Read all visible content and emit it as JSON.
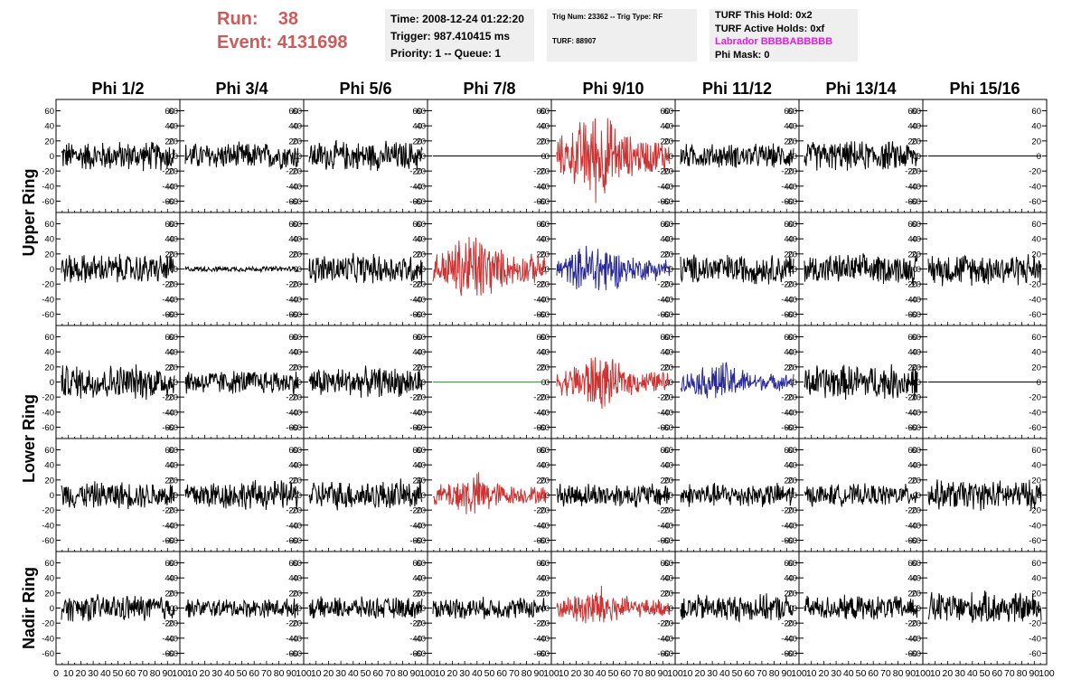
{
  "header": {
    "run_label": "Run:",
    "run_value": "38",
    "event_label": "Event:",
    "event_value": "4131698",
    "time": "Time: 2008-12-24 01:22:20",
    "trigger": "Trigger: 987.410415 ms",
    "priority": "Priority: 1 -- Queue: 1",
    "trig_num": "Trig Num: 23362 -- Trig Type: RF",
    "turf": "TURF: 88907",
    "turf_hold": "TURF This Hold: 0x2",
    "turf_active": "TURF Active Holds: 0xf",
    "labrador": "Labrador BBBBABBBBB",
    "phi_mask": "Phi Mask: 0"
  },
  "colors": {
    "black": "#000000",
    "red": "#cc3333",
    "blue": "#2a2a96",
    "green": "#2e9e2e",
    "header_red": "#cc5b5b",
    "magenta": "#e01ee0"
  },
  "chart_data": {
    "type": "line",
    "columns": [
      "Phi 1/2",
      "Phi 3/4",
      "Phi 5/6",
      "Phi 7/8",
      "Phi 9/10",
      "Phi 11/12",
      "Phi 13/14",
      "Phi 15/16"
    ],
    "rows": [
      "Upper Ring",
      "Upper Ring",
      "Lower Ring",
      "Lower Ring",
      "Nadir Ring"
    ],
    "ring_labels": [
      "Upper Ring",
      "Lower Ring",
      "Nadir Ring"
    ],
    "xlim": [
      0,
      100
    ],
    "ylim": [
      -75,
      75
    ],
    "yticks": [
      -60,
      -40,
      -20,
      0,
      20,
      40,
      60
    ],
    "xticks": [
      0,
      10,
      20,
      30,
      40,
      50,
      60,
      70,
      80,
      90,
      100
    ],
    "panels": [
      [
        "black:22",
        "black:20",
        "black:22",
        "black:0",
        "red:48",
        "black:18",
        "black:22",
        "black:0"
      ],
      [
        "black:22",
        "black:4",
        "black:22",
        "red:40",
        "blue:30",
        "black:22",
        "black:22",
        "black:24"
      ],
      [
        "black:26",
        "black:18",
        "black:22",
        "green:0",
        "red:30",
        "blue:22",
        "black:26",
        "black:0"
      ],
      [
        "black:20",
        "black:22",
        "black:22",
        "red:24",
        "black:18",
        "black:18",
        "black:16",
        "black:22"
      ],
      [
        "black:20",
        "black:14",
        "black:16",
        "black:16",
        "red:24",
        "black:20",
        "black:18",
        "black:24"
      ]
    ]
  }
}
